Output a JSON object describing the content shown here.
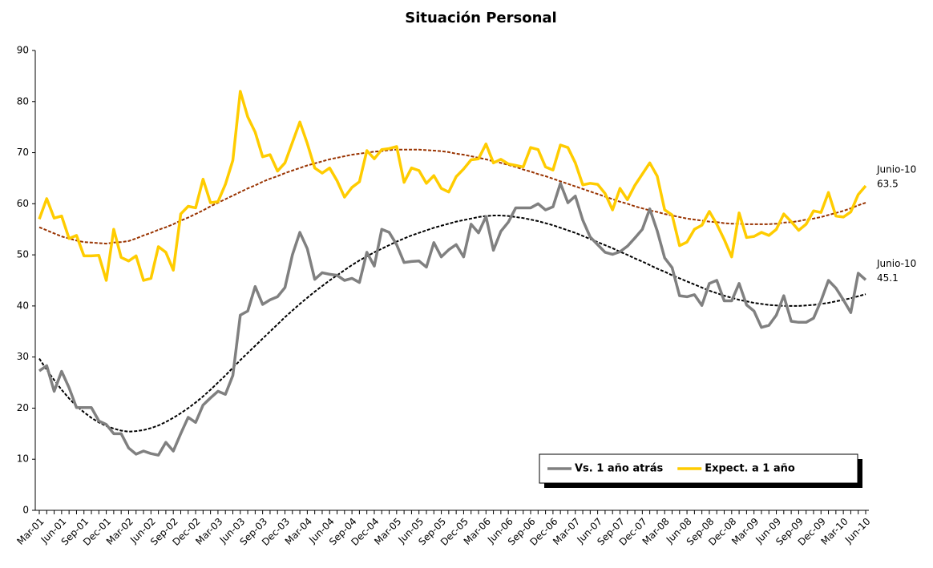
{
  "chart_data": {
    "type": "line",
    "title": "Situación Personal",
    "categories": [
      "Mar-01",
      null,
      null,
      "Jun-01",
      null,
      null,
      "Sep-01",
      null,
      null,
      "Dec-01",
      null,
      null,
      "Mar-02",
      null,
      null,
      "Jun-02",
      null,
      null,
      "Sep-02",
      null,
      null,
      "Dec-02",
      null,
      null,
      "Mar-03",
      null,
      null,
      "Jun-03",
      null,
      null,
      "Sep-03",
      null,
      null,
      "Dec-03",
      null,
      null,
      "Mar-04",
      null,
      null,
      "Jun-04",
      null,
      null,
      "Sep-04",
      null,
      null,
      "Dec-04",
      null,
      null,
      "Mar-05",
      null,
      null,
      "Jun-05",
      null,
      null,
      "Sep-05",
      null,
      null,
      "Dec-05",
      null,
      null,
      "Mar-06",
      null,
      null,
      "Jun-06",
      null,
      null,
      "Sep-06",
      null,
      null,
      "Dec-06",
      null,
      null,
      "Mar-07",
      null,
      null,
      "Jun-07",
      null,
      null,
      "Sep-07",
      null,
      null,
      "Dec-07",
      null,
      null,
      "Mar-08",
      null,
      null,
      "Jun-08",
      null,
      null,
      "Sep-08",
      null,
      null,
      "Dec-08",
      null,
      null,
      "Mar-09",
      null,
      null,
      "Jun-09",
      null,
      null,
      "Sep-09",
      null,
      null,
      "Dec-09",
      null,
      null,
      "Mar-10",
      null,
      null,
      "Jun-10"
    ],
    "series": [
      {
        "name": "Vs. 1 año atrás",
        "color": "#808080",
        "end_label": "Junio-10",
        "values": [
          27.3,
          28.3,
          23.3,
          27.2,
          24,
          20.1,
          20.1,
          20.1,
          17.5,
          16.8,
          15,
          15,
          12.2,
          11,
          11.6,
          11.1,
          10.8,
          13.3,
          11.6,
          15,
          18.2,
          17.2,
          20.6,
          22,
          23.3,
          22.7,
          26.4,
          38.2,
          39,
          43.8,
          40.3,
          41.2,
          41.8,
          43.6,
          50,
          54.4,
          51.2,
          45.2,
          46.5,
          46.2,
          46,
          45,
          45.4,
          44.6,
          50.5,
          47.8,
          55,
          54.4,
          52,
          48.5,
          48.7,
          48.8,
          47.6,
          52.4,
          49.6,
          51,
          52,
          49.6,
          56,
          54.3,
          57.5,
          50.9,
          54.6,
          56.4,
          59.2,
          59.2,
          59.2,
          60,
          58.8,
          59.4,
          64,
          60.2,
          61.5,
          56.8,
          53.5,
          52,
          50.5,
          50.1,
          50.6,
          51.7,
          53.3,
          55,
          59,
          54.7,
          49.4,
          47.5,
          42,
          41.8,
          42.2,
          40.1,
          44.4,
          45,
          41,
          41,
          44.4,
          40.2,
          39,
          35.8,
          36.2,
          38.2,
          42,
          37,
          36.8,
          36.8,
          37.6,
          41,
          45,
          43.5,
          41.2,
          38.7,
          46.4,
          45.1
        ]
      },
      {
        "name": "Expect. a 1 año",
        "color": "#ffcc00",
        "end_label": "Junio-10",
        "values": [
          57,
          61,
          57.2,
          57.6,
          53.2,
          53.8,
          49.8,
          49.8,
          49.9,
          45,
          55,
          49.5,
          48.8,
          49.8,
          45,
          45.4,
          51.6,
          50.5,
          47,
          58,
          59.5,
          59.2,
          64.8,
          60.2,
          60.4,
          63.8,
          68.5,
          82,
          77,
          74,
          69.2,
          69.6,
          66.4,
          68,
          72,
          76,
          71.8,
          67,
          66,
          67,
          64.5,
          61.3,
          63.2,
          64.3,
          70.4,
          68.8,
          70.6,
          70.8,
          71.2,
          64.2,
          67,
          66.5,
          64,
          65.5,
          63,
          62.3,
          65.3,
          66.8,
          68.6,
          68.8,
          71.7,
          68,
          68.7,
          67.8,
          67.5,
          67.2,
          71,
          70.6,
          67.2,
          66.6,
          71.5,
          71,
          68,
          63.7,
          64,
          63.8,
          62,
          58.8,
          63,
          60.8,
          63.6,
          65.8,
          68,
          65.4,
          58.8,
          57.8,
          51.8,
          52.5,
          55,
          55.8,
          58.5,
          56,
          53,
          49.6,
          58.2,
          53.4,
          53.6,
          54.4,
          53.8,
          55,
          58,
          56.5,
          54.8,
          56,
          58.6,
          58.3,
          62.2,
          57.6,
          57.4,
          58.4,
          61.8,
          63.5
        ]
      }
    ],
    "trendlines": [
      {
        "color": "#000000",
        "values": [
          29.7,
          27.5,
          25.5,
          23.6,
          21.9,
          20.4,
          19.2,
          18.1,
          17.2,
          16.5,
          16.0,
          15.6,
          15.4,
          15.5,
          15.7,
          16.1,
          16.6,
          17.3,
          18.1,
          19.0,
          20.0,
          21.1,
          22.3,
          23.6,
          25.0,
          26.4,
          27.9,
          29.4,
          30.8,
          32.2,
          33.6,
          35.0,
          36.4,
          37.8,
          39.1,
          40.4,
          41.6,
          42.8,
          43.9,
          45.0,
          46.0,
          47.0,
          48.0,
          48.9,
          49.7,
          50.5,
          51.2,
          51.9,
          52.6,
          53.2,
          53.8,
          54.3,
          54.8,
          55.3,
          55.7,
          56.1,
          56.5,
          56.8,
          57.1,
          57.4,
          57.6,
          57.7,
          57.7,
          57.6,
          57.4,
          57.2,
          56.9,
          56.6,
          56.2,
          55.8,
          55.3,
          54.8,
          54.3,
          53.7,
          53.1,
          52.5,
          51.9,
          51.3,
          50.6,
          50.0,
          49.3,
          48.7,
          48.0,
          47.3,
          46.7,
          46.0,
          45.4,
          44.8,
          44.2,
          43.6,
          43.0,
          42.5,
          42.0,
          41.6,
          41.2,
          40.9,
          40.6,
          40.4,
          40.2,
          40.1,
          40.0,
          40.0,
          40.0,
          40.1,
          40.2,
          40.4,
          40.6,
          40.9,
          41.2,
          41.5,
          41.9,
          42.3
        ]
      },
      {
        "color": "#993300",
        "values": [
          55.4,
          54.8,
          54.2,
          53.6,
          53.2,
          52.8,
          52.5,
          52.4,
          52.3,
          52.2,
          52.4,
          52.5,
          52.7,
          53.2,
          53.8,
          54.3,
          54.9,
          55.4,
          56,
          56.7,
          57.3,
          58,
          58.7,
          59.5,
          60.2,
          60.9,
          61.6,
          62.3,
          63,
          63.6,
          64.3,
          64.9,
          65.4,
          66,
          66.5,
          67,
          67.5,
          67.9,
          68.3,
          68.7,
          69,
          69.3,
          69.6,
          69.8,
          70,
          70.2,
          70.3,
          70.5,
          70.6,
          70.6,
          70.6,
          70.6,
          70.5,
          70.4,
          70.3,
          70.1,
          69.8,
          69.6,
          69.3,
          69,
          68.7,
          68.3,
          68,
          67.6,
          67.2,
          66.7,
          66.3,
          65.8,
          65.4,
          64.9,
          64.4,
          63.9,
          63.4,
          62.9,
          62.4,
          61.9,
          61.4,
          60.9,
          60.4,
          60,
          59.5,
          59.1,
          58.7,
          58.4,
          58,
          57.7,
          57.4,
          57.1,
          56.9,
          56.7,
          56.5,
          56.4,
          56.2,
          56.1,
          56.1,
          56,
          56,
          56,
          56,
          56.1,
          56.3,
          56.4,
          56.6,
          56.9,
          57.1,
          57.4,
          57.8,
          58.2,
          58.6,
          59.1,
          59.7,
          60.2
        ]
      }
    ],
    "ylim": [
      0,
      90
    ],
    "yticks": [
      0,
      10,
      20,
      30,
      40,
      50,
      60,
      70,
      80,
      90
    ],
    "grid": false,
    "legend": "lower right"
  }
}
